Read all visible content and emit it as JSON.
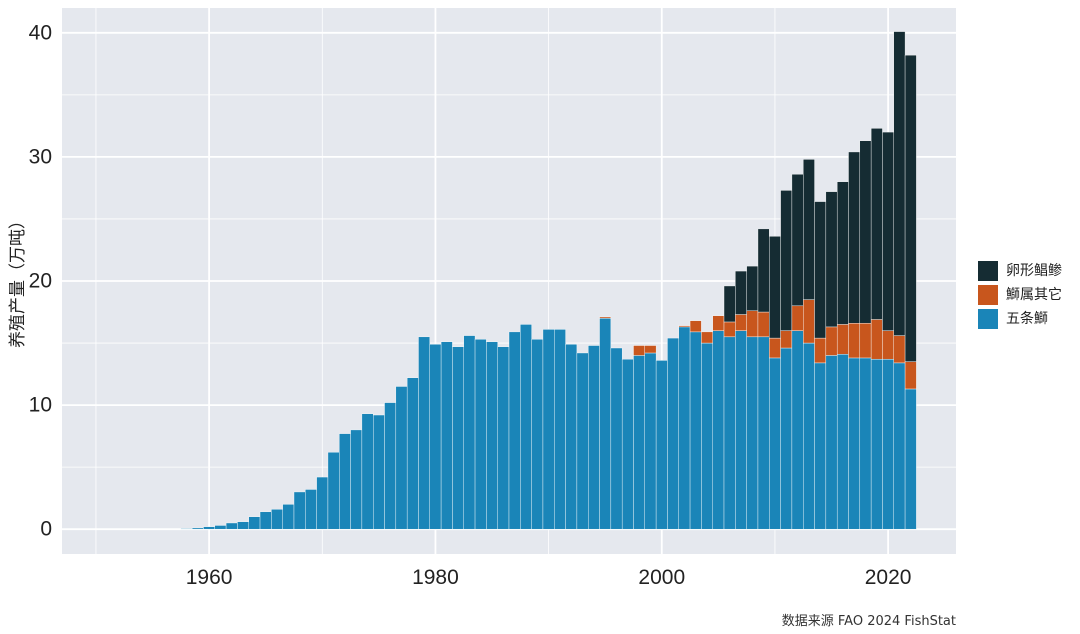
{
  "chart_data": {
    "type": "bar",
    "stacked": true,
    "ylabel": "养殖产量（万吨）",
    "source": "数据来源 FAO 2024 FishStat",
    "xlim": [
      1947,
      2026
    ],
    "ylim": [
      -2,
      42
    ],
    "x_ticks": [
      "1960",
      "1980",
      "2000",
      "2020"
    ],
    "y_ticks": [
      "0",
      "10",
      "20",
      "30",
      "40"
    ],
    "grid": true,
    "legend_position": "right",
    "years": [
      1958,
      1959,
      1960,
      1961,
      1962,
      1963,
      1964,
      1965,
      1966,
      1967,
      1968,
      1969,
      1970,
      1971,
      1972,
      1973,
      1974,
      1975,
      1976,
      1977,
      1978,
      1979,
      1980,
      1981,
      1982,
      1983,
      1984,
      1985,
      1986,
      1987,
      1988,
      1989,
      1990,
      1991,
      1992,
      1993,
      1994,
      1995,
      1996,
      1997,
      1998,
      1999,
      2000,
      2001,
      2002,
      2003,
      2004,
      2005,
      2006,
      2007,
      2008,
      2009,
      2010,
      2011,
      2012,
      2013,
      2014,
      2015,
      2016,
      2017,
      2018,
      2019,
      2020,
      2021,
      2022
    ],
    "series": [
      {
        "name": "五条鰤",
        "color": "#1a85b8",
        "values": [
          0.05,
          0.1,
          0.2,
          0.3,
          0.5,
          0.6,
          1.0,
          1.4,
          1.6,
          2.0,
          3.0,
          3.2,
          4.2,
          6.2,
          7.7,
          8.0,
          9.3,
          9.2,
          10.2,
          11.5,
          12.2,
          15.5,
          14.9,
          15.1,
          14.7,
          15.6,
          15.3,
          15.1,
          14.7,
          15.9,
          16.5,
          15.3,
          16.1,
          16.1,
          14.9,
          14.2,
          14.8,
          17.0,
          14.6,
          13.7,
          14.0,
          14.2,
          13.6,
          15.4,
          16.3,
          15.9,
          15.0,
          16.0,
          15.5,
          16.0,
          15.5,
          15.5,
          13.8,
          14.6,
          16.0,
          15.0,
          13.4,
          14.0,
          14.1,
          13.8,
          13.8,
          13.7,
          13.7,
          13.4,
          11.3
        ]
      },
      {
        "name": "鰤属其它",
        "color": "#c8561d",
        "values": [
          0,
          0,
          0,
          0,
          0,
          0,
          0,
          0,
          0,
          0,
          0,
          0,
          0,
          0,
          0,
          0,
          0,
          0,
          0,
          0,
          0,
          0,
          0,
          0,
          0,
          0,
          0,
          0,
          0,
          0,
          0,
          0,
          0,
          0,
          0,
          0,
          0,
          0.1,
          0,
          0,
          0.8,
          0.6,
          0,
          0,
          0.1,
          0.9,
          0.9,
          1.2,
          1.2,
          1.3,
          2.1,
          2.0,
          1.6,
          1.4,
          2.0,
          3.5,
          2.0,
          2.3,
          2.4,
          2.8,
          2.8,
          3.2,
          2.3,
          2.2,
          2.2
        ]
      },
      {
        "name": "卵形鲳鲹",
        "color": "#152c33",
        "values": [
          0,
          0,
          0,
          0,
          0,
          0,
          0,
          0,
          0,
          0,
          0,
          0,
          0,
          0,
          0,
          0,
          0,
          0,
          0,
          0,
          0,
          0,
          0,
          0,
          0,
          0,
          0,
          0,
          0,
          0,
          0,
          0,
          0,
          0,
          0,
          0,
          0,
          0,
          0,
          0,
          0,
          0,
          0,
          0,
          0,
          0,
          0,
          0,
          2.9,
          3.5,
          3.6,
          6.7,
          8.2,
          11.3,
          10.6,
          11.3,
          11.0,
          10.9,
          11.5,
          13.8,
          14.7,
          15.4,
          16.0,
          24.5,
          24.7
        ]
      }
    ],
    "legend_order": [
      "卵形鲳鲹",
      "鰤属其它",
      "五条鰤"
    ]
  }
}
